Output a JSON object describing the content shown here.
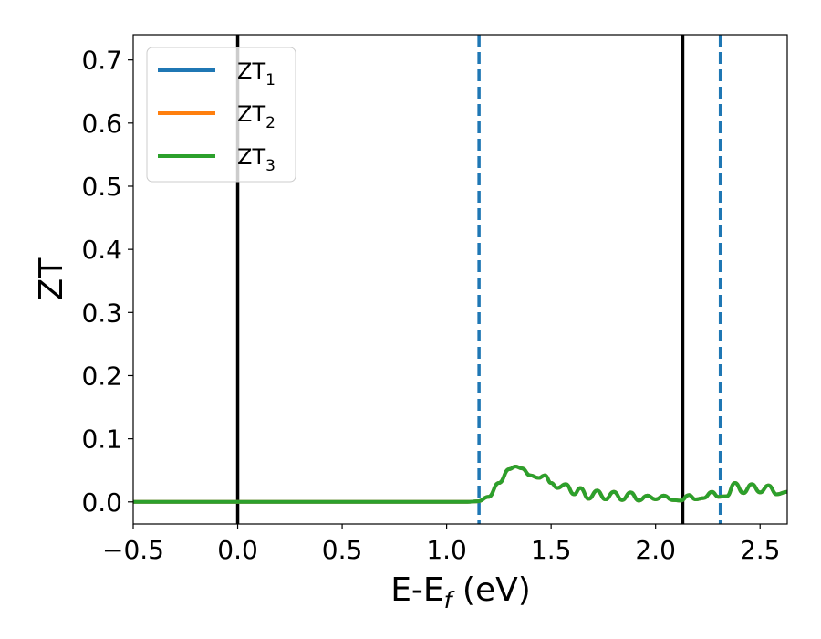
{
  "chart_data": {
    "type": "line",
    "xlabel": {
      "main": "E-E",
      "sub": "f",
      "tail": " (eV)"
    },
    "ylabel": "ZT",
    "xlim": [
      -0.5,
      2.63
    ],
    "ylim": [
      -0.035,
      0.74
    ],
    "x_ticks": [
      -0.5,
      0.0,
      0.5,
      1.0,
      1.5,
      2.0,
      2.5
    ],
    "x_tick_labels": [
      "−0.5",
      "0.0",
      "0.5",
      "1.0",
      "1.5",
      "2.0",
      "2.5"
    ],
    "y_ticks": [
      0.0,
      0.1,
      0.2,
      0.3,
      0.4,
      0.5,
      0.6,
      0.7
    ],
    "y_tick_labels": [
      "0.0",
      "0.1",
      "0.2",
      "0.3",
      "0.4",
      "0.5",
      "0.6",
      "0.7"
    ],
    "legend_placement": "top-left",
    "series": [
      {
        "name": "ZT1",
        "label_main": "ZT",
        "label_sub": "1",
        "color": "#1f77b4",
        "x": [
          -0.5,
          1.1,
          1.15,
          1.2,
          1.25,
          1.3,
          1.33,
          1.36,
          1.4,
          1.44,
          1.47,
          1.5,
          1.53,
          1.57,
          1.61,
          1.64,
          1.68,
          1.72,
          1.76,
          1.8,
          1.84,
          1.88,
          1.92,
          1.96,
          2.0,
          2.04,
          2.08,
          2.12,
          2.16,
          2.19,
          2.23,
          2.27,
          2.3,
          2.34,
          2.38,
          2.42,
          2.46,
          2.5,
          2.54,
          2.58,
          2.63
        ],
        "y": [
          0.0,
          0.0,
          0.001,
          0.008,
          0.03,
          0.052,
          0.056,
          0.053,
          0.042,
          0.038,
          0.042,
          0.03,
          0.022,
          0.028,
          0.012,
          0.022,
          0.005,
          0.018,
          0.004,
          0.016,
          0.003,
          0.015,
          0.002,
          0.01,
          0.004,
          0.01,
          0.003,
          0.002,
          0.011,
          0.004,
          0.006,
          0.016,
          0.008,
          0.009,
          0.03,
          0.014,
          0.028,
          0.015,
          0.026,
          0.012,
          0.016
        ]
      },
      {
        "name": "ZT2",
        "label_main": "ZT",
        "label_sub": "2",
        "color": "#ff7f0e",
        "x": [
          -0.5,
          1.1,
          1.15,
          1.2,
          1.25,
          1.3,
          1.33,
          1.36,
          1.4,
          1.44,
          1.47,
          1.5,
          1.53,
          1.57,
          1.61,
          1.64,
          1.68,
          1.72,
          1.76,
          1.8,
          1.84,
          1.88,
          1.92,
          1.96,
          2.0,
          2.04,
          2.08,
          2.12,
          2.16,
          2.19,
          2.23,
          2.27,
          2.3,
          2.34,
          2.38,
          2.42,
          2.46,
          2.5,
          2.54,
          2.58,
          2.63
        ],
        "y": [
          0.0,
          0.0,
          0.001,
          0.008,
          0.03,
          0.052,
          0.056,
          0.053,
          0.042,
          0.038,
          0.042,
          0.03,
          0.022,
          0.028,
          0.012,
          0.022,
          0.005,
          0.018,
          0.004,
          0.016,
          0.003,
          0.015,
          0.002,
          0.01,
          0.004,
          0.01,
          0.003,
          0.002,
          0.011,
          0.004,
          0.006,
          0.016,
          0.008,
          0.009,
          0.03,
          0.014,
          0.028,
          0.015,
          0.026,
          0.012,
          0.016
        ]
      },
      {
        "name": "ZT3",
        "label_main": "ZT",
        "label_sub": "3",
        "color": "#2ca02c",
        "x": [
          -0.5,
          1.1,
          1.15,
          1.2,
          1.25,
          1.3,
          1.33,
          1.36,
          1.4,
          1.44,
          1.47,
          1.5,
          1.53,
          1.57,
          1.61,
          1.64,
          1.68,
          1.72,
          1.76,
          1.8,
          1.84,
          1.88,
          1.92,
          1.96,
          2.0,
          2.04,
          2.08,
          2.12,
          2.16,
          2.19,
          2.23,
          2.27,
          2.3,
          2.34,
          2.38,
          2.42,
          2.46,
          2.5,
          2.54,
          2.58,
          2.63
        ],
        "y": [
          0.0,
          0.0,
          0.001,
          0.008,
          0.03,
          0.052,
          0.056,
          0.053,
          0.042,
          0.038,
          0.042,
          0.03,
          0.022,
          0.028,
          0.012,
          0.022,
          0.005,
          0.018,
          0.004,
          0.016,
          0.003,
          0.015,
          0.002,
          0.01,
          0.004,
          0.01,
          0.003,
          0.002,
          0.011,
          0.004,
          0.006,
          0.016,
          0.008,
          0.009,
          0.03,
          0.014,
          0.028,
          0.015,
          0.026,
          0.012,
          0.016
        ]
      }
    ],
    "vlines": [
      {
        "x": 0.0,
        "style": "solid",
        "color": "#000000"
      },
      {
        "x": 2.13,
        "style": "solid",
        "color": "#000000"
      },
      {
        "x": 1.155,
        "style": "dashed",
        "color": "#1f77b4"
      },
      {
        "x": 2.31,
        "style": "dashed",
        "color": "#1f77b4"
      }
    ]
  }
}
